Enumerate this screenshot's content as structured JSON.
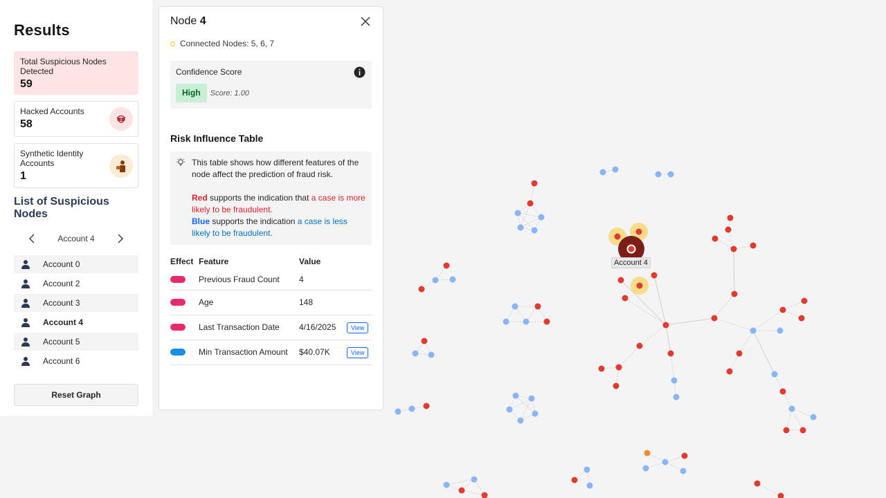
{
  "sidebar": {
    "title": "Results",
    "stats": {
      "total": {
        "label": "Total Suspicious Nodes Detected",
        "value": "59"
      },
      "hacked": {
        "label": "Hacked Accounts",
        "value": "58",
        "icon": "hacker-icon"
      },
      "synthetic": {
        "label": "Synthetic Identity Accounts",
        "value": "1",
        "icon": "fake-identity-icon"
      }
    },
    "list_title": "List of Suspicious Nodes",
    "pager": {
      "current": "Account 4"
    },
    "accounts": [
      "Account 0",
      "Account 2",
      "Account 3",
      "Account 4",
      "Account 5",
      "Account 6"
    ],
    "active_account": "Account 4",
    "reset_label": "Reset Graph"
  },
  "panel": {
    "title_prefix": "Node",
    "node_id": "4",
    "connected_label": "Connected Nodes: 5, 6, 7",
    "confidence": {
      "title": "Confidence Score",
      "level": "High",
      "score": "Score: 1.00"
    },
    "risk_title": "Risk Influence Table",
    "note": {
      "intro": "This table shows how different features of the node affect the prediction of fraud risk.",
      "red_word": "Red",
      "red_mid": "supports the indication that",
      "red_tail": "a case is more likely to be fraudulent.",
      "blue_word": "Blue",
      "blue_mid": "supports the indication",
      "blue_tail": "a case is less likely to be fraudulent."
    },
    "table": {
      "headers": {
        "effect": "Effect",
        "feature": "Feature",
        "value": "Value"
      },
      "rows": [
        {
          "effect": "red",
          "feature": "Previous Fraud Count",
          "value": "4",
          "view": ""
        },
        {
          "effect": "red",
          "feature": "Age",
          "value": "148",
          "view": ""
        },
        {
          "effect": "red",
          "feature": "Last Transaction Date",
          "value": "4/16/2025",
          "view": "View"
        },
        {
          "effect": "blue",
          "feature": "Min Transaction Amount",
          "value": "$40.07K",
          "view": "View"
        }
      ]
    }
  },
  "graph": {
    "tooltip": "Account 4",
    "colors": {
      "red": "#e03b2e",
      "blue": "#8ab5f5",
      "orange": "#f28c28",
      "dark": "#7d1d1a",
      "halo": "#f7dc8a"
    }
  }
}
